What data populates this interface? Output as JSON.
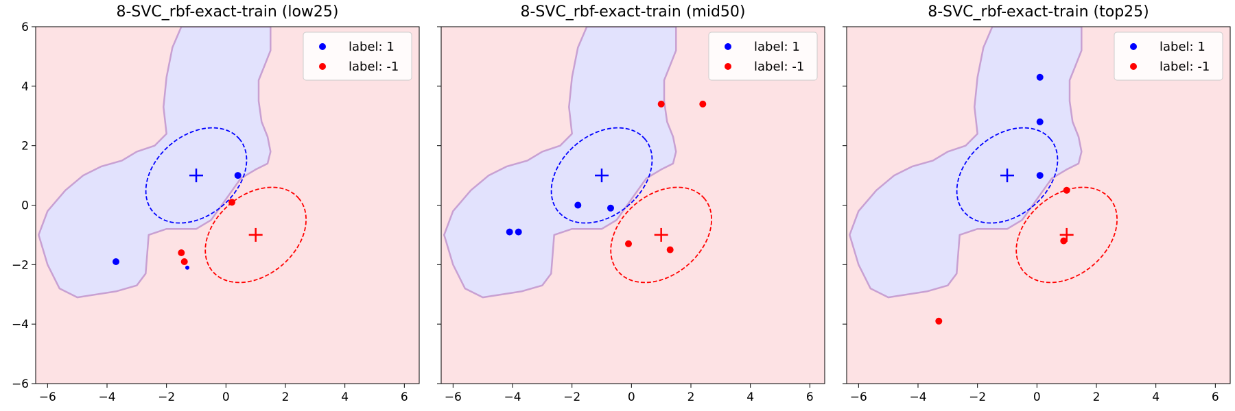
{
  "colors": {
    "positive": "#0000ff",
    "negative": "#ff0000",
    "positive_region": "#e2e2fd",
    "negative_region": "#fde2e4",
    "boundary": "#c8a0d2"
  },
  "chart_data": [
    {
      "type": "scatter",
      "title": "8-SVC_rbf-exact-train (low25)",
      "xlim": [
        -6.4,
        6.5
      ],
      "ylim": [
        -6,
        6
      ],
      "xticks": [
        -6,
        -4,
        -2,
        0,
        2,
        4,
        6
      ],
      "yticks": [
        -6,
        -4,
        -2,
        0,
        2,
        4,
        6
      ],
      "xtick_labels": [
        "−6",
        "−4",
        "−2",
        "0",
        "2",
        "4",
        "6"
      ],
      "ytick_labels": [
        "−6",
        "−4",
        "−2",
        "0",
        "2",
        "4",
        "6"
      ],
      "legend": {
        "location": "upper right",
        "entries": [
          "label: 1",
          "label: -1"
        ]
      },
      "centers": [
        {
          "label": "1",
          "x": -1,
          "y": 1
        },
        {
          "label": "-1",
          "x": 1,
          "y": -1
        }
      ],
      "ellipses": [
        {
          "label": "1",
          "cx": -1,
          "cy": 1,
          "width": 3.8,
          "height": 2.7,
          "angle_deg": 40
        },
        {
          "label": "-1",
          "cx": 1,
          "cy": -1,
          "width": 3.8,
          "height": 2.7,
          "angle_deg": 40
        }
      ],
      "series": [
        {
          "name": "label: 1",
          "points": [
            [
              -3.7,
              -1.9,
              5
            ],
            [
              0.4,
              1.0,
              5
            ],
            [
              -1.3,
              -2.1,
              3
            ]
          ]
        },
        {
          "name": "label: -1",
          "points": [
            [
              0.2,
              0.1,
              5
            ],
            [
              -1.5,
              -1.6,
              5
            ],
            [
              -1.4,
              -1.9,
              5
            ]
          ]
        }
      ]
    },
    {
      "type": "scatter",
      "title": "8-SVC_rbf-exact-train (mid50)",
      "xlim": [
        -6.4,
        6.5
      ],
      "ylim": [
        -6,
        6
      ],
      "xticks": [
        -6,
        -4,
        -2,
        0,
        2,
        4,
        6
      ],
      "yticks": [
        -6,
        -4,
        -2,
        0,
        2,
        4,
        6
      ],
      "xtick_labels": [
        "−6",
        "−4",
        "−2",
        "0",
        "2",
        "4",
        "6"
      ],
      "ytick_labels": [],
      "legend": {
        "location": "upper right",
        "entries": [
          "label: 1",
          "label: -1"
        ]
      },
      "centers": [
        {
          "label": "1",
          "x": -1,
          "y": 1
        },
        {
          "label": "-1",
          "x": 1,
          "y": -1
        }
      ],
      "ellipses": [
        {
          "label": "1",
          "cx": -1,
          "cy": 1,
          "width": 3.8,
          "height": 2.7,
          "angle_deg": 40
        },
        {
          "label": "-1",
          "cx": 1,
          "cy": -1,
          "width": 3.8,
          "height": 2.7,
          "angle_deg": 40
        }
      ],
      "series": [
        {
          "name": "label: 1",
          "points": [
            [
              -4.1,
              -0.9,
              5
            ],
            [
              -3.8,
              -0.9,
              5
            ],
            [
              -1.8,
              0.0,
              5
            ],
            [
              -0.7,
              -0.1,
              5
            ]
          ]
        },
        {
          "name": "label: -1",
          "points": [
            [
              1.0,
              3.4,
              5
            ],
            [
              2.4,
              3.4,
              5
            ],
            [
              -0.1,
              -1.3,
              5
            ],
            [
              1.3,
              -1.5,
              5
            ]
          ]
        }
      ]
    },
    {
      "type": "scatter",
      "title": "8-SVC_rbf-exact-train (top25)",
      "xlim": [
        -6.4,
        6.5
      ],
      "ylim": [
        -6,
        6
      ],
      "xticks": [
        -6,
        -4,
        -2,
        0,
        2,
        4,
        6
      ],
      "yticks": [
        -6,
        -4,
        -2,
        0,
        2,
        4,
        6
      ],
      "xtick_labels": [
        "−6",
        "−4",
        "−2",
        "0",
        "2",
        "4",
        "6"
      ],
      "ytick_labels": [],
      "legend": {
        "location": "upper right",
        "entries": [
          "label: 1",
          "label: -1"
        ]
      },
      "centers": [
        {
          "label": "1",
          "x": -1,
          "y": 1
        },
        {
          "label": "-1",
          "x": 1,
          "y": -1
        }
      ],
      "ellipses": [
        {
          "label": "1",
          "cx": -1,
          "cy": 1,
          "width": 3.8,
          "height": 2.7,
          "angle_deg": 40
        },
        {
          "label": "-1",
          "cx": 1,
          "cy": -1,
          "width": 3.8,
          "height": 2.7,
          "angle_deg": 40
        }
      ],
      "series": [
        {
          "name": "label: 1",
          "points": [
            [
              0.1,
              4.3,
              5
            ],
            [
              0.1,
              2.8,
              5
            ],
            [
              0.1,
              1.0,
              5
            ]
          ]
        },
        {
          "name": "label: -1",
          "points": [
            [
              1.0,
              0.5,
              5
            ],
            [
              0.9,
              -1.2,
              5
            ],
            [
              -3.3,
              -3.9,
              5
            ]
          ]
        }
      ]
    }
  ],
  "decision_region_label_1": [
    [
      -1.5,
      6.0
    ],
    [
      1.5,
      6.0
    ],
    [
      1.5,
      5.2
    ],
    [
      1.3,
      4.7
    ],
    [
      1.1,
      4.2
    ],
    [
      1.1,
      3.5
    ],
    [
      1.2,
      2.8
    ],
    [
      1.4,
      2.3
    ],
    [
      1.5,
      1.8
    ],
    [
      1.4,
      1.4
    ],
    [
      1.0,
      1.2
    ],
    [
      0.5,
      0.9
    ],
    [
      0.0,
      0.2
    ],
    [
      -0.5,
      -0.5
    ],
    [
      -1.0,
      -0.8
    ],
    [
      -2.0,
      -0.8
    ],
    [
      -2.6,
      -1.0
    ],
    [
      -2.7,
      -2.3
    ],
    [
      -3.0,
      -2.7
    ],
    [
      -3.7,
      -2.9
    ],
    [
      -5.0,
      -3.1
    ],
    [
      -5.6,
      -2.8
    ],
    [
      -6.0,
      -2.0
    ],
    [
      -6.3,
      -1.0
    ],
    [
      -6.0,
      -0.2
    ],
    [
      -5.4,
      0.5
    ],
    [
      -4.8,
      1.0
    ],
    [
      -4.2,
      1.3
    ],
    [
      -3.5,
      1.5
    ],
    [
      -3.0,
      1.8
    ],
    [
      -2.4,
      2.0
    ],
    [
      -2.0,
      2.4
    ],
    [
      -2.1,
      3.3
    ],
    [
      -2.0,
      4.3
    ],
    [
      -1.8,
      5.3
    ]
  ]
}
